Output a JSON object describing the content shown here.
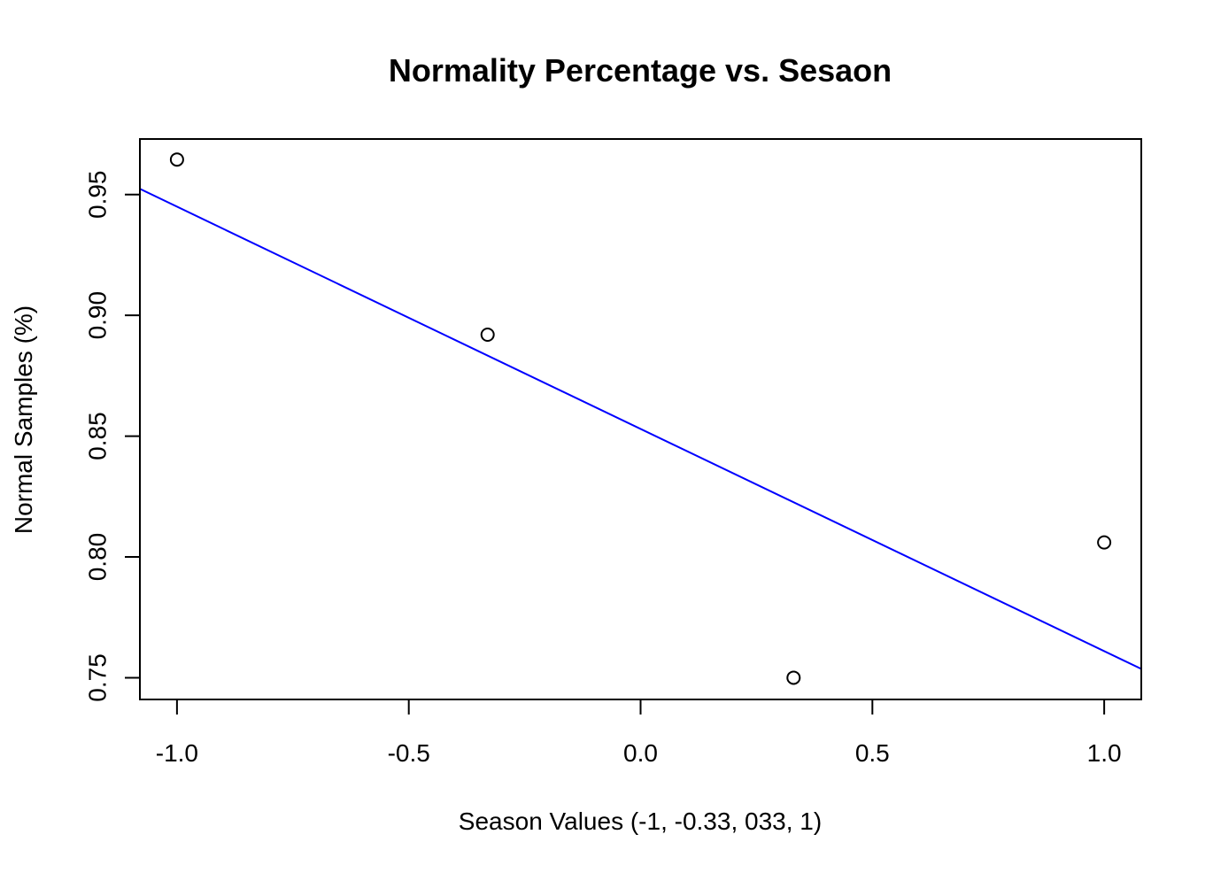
{
  "chart_data": {
    "type": "scatter",
    "title": "Normality Percentage vs. Sesaon",
    "xlabel": "Season Values (-1, -0.33, 033, 1)",
    "ylabel": "Normal Samples (%)",
    "xlim": [
      -1.08,
      1.08
    ],
    "ylim": [
      0.741,
      0.973
    ],
    "x_ticks": [
      -1.0,
      -0.5,
      0.0,
      0.5,
      1.0
    ],
    "x_tick_labels": [
      "-1.0",
      "-0.5",
      "0.0",
      "0.5",
      "1.0"
    ],
    "y_ticks": [
      0.75,
      0.8,
      0.85,
      0.9,
      0.95
    ],
    "y_tick_labels": [
      "0.75",
      "0.80",
      "0.85",
      "0.90",
      "0.95"
    ],
    "grid": false,
    "points": [
      {
        "x": -1.0,
        "y": 0.9645
      },
      {
        "x": -0.33,
        "y": 0.892
      },
      {
        "x": 0.33,
        "y": 0.75
      },
      {
        "x": 1.0,
        "y": 0.806
      }
    ],
    "fit_line": {
      "type": "linear",
      "intercept": 0.853,
      "slope": -0.092,
      "color": "#0000ff"
    },
    "point_color": "#000000"
  }
}
